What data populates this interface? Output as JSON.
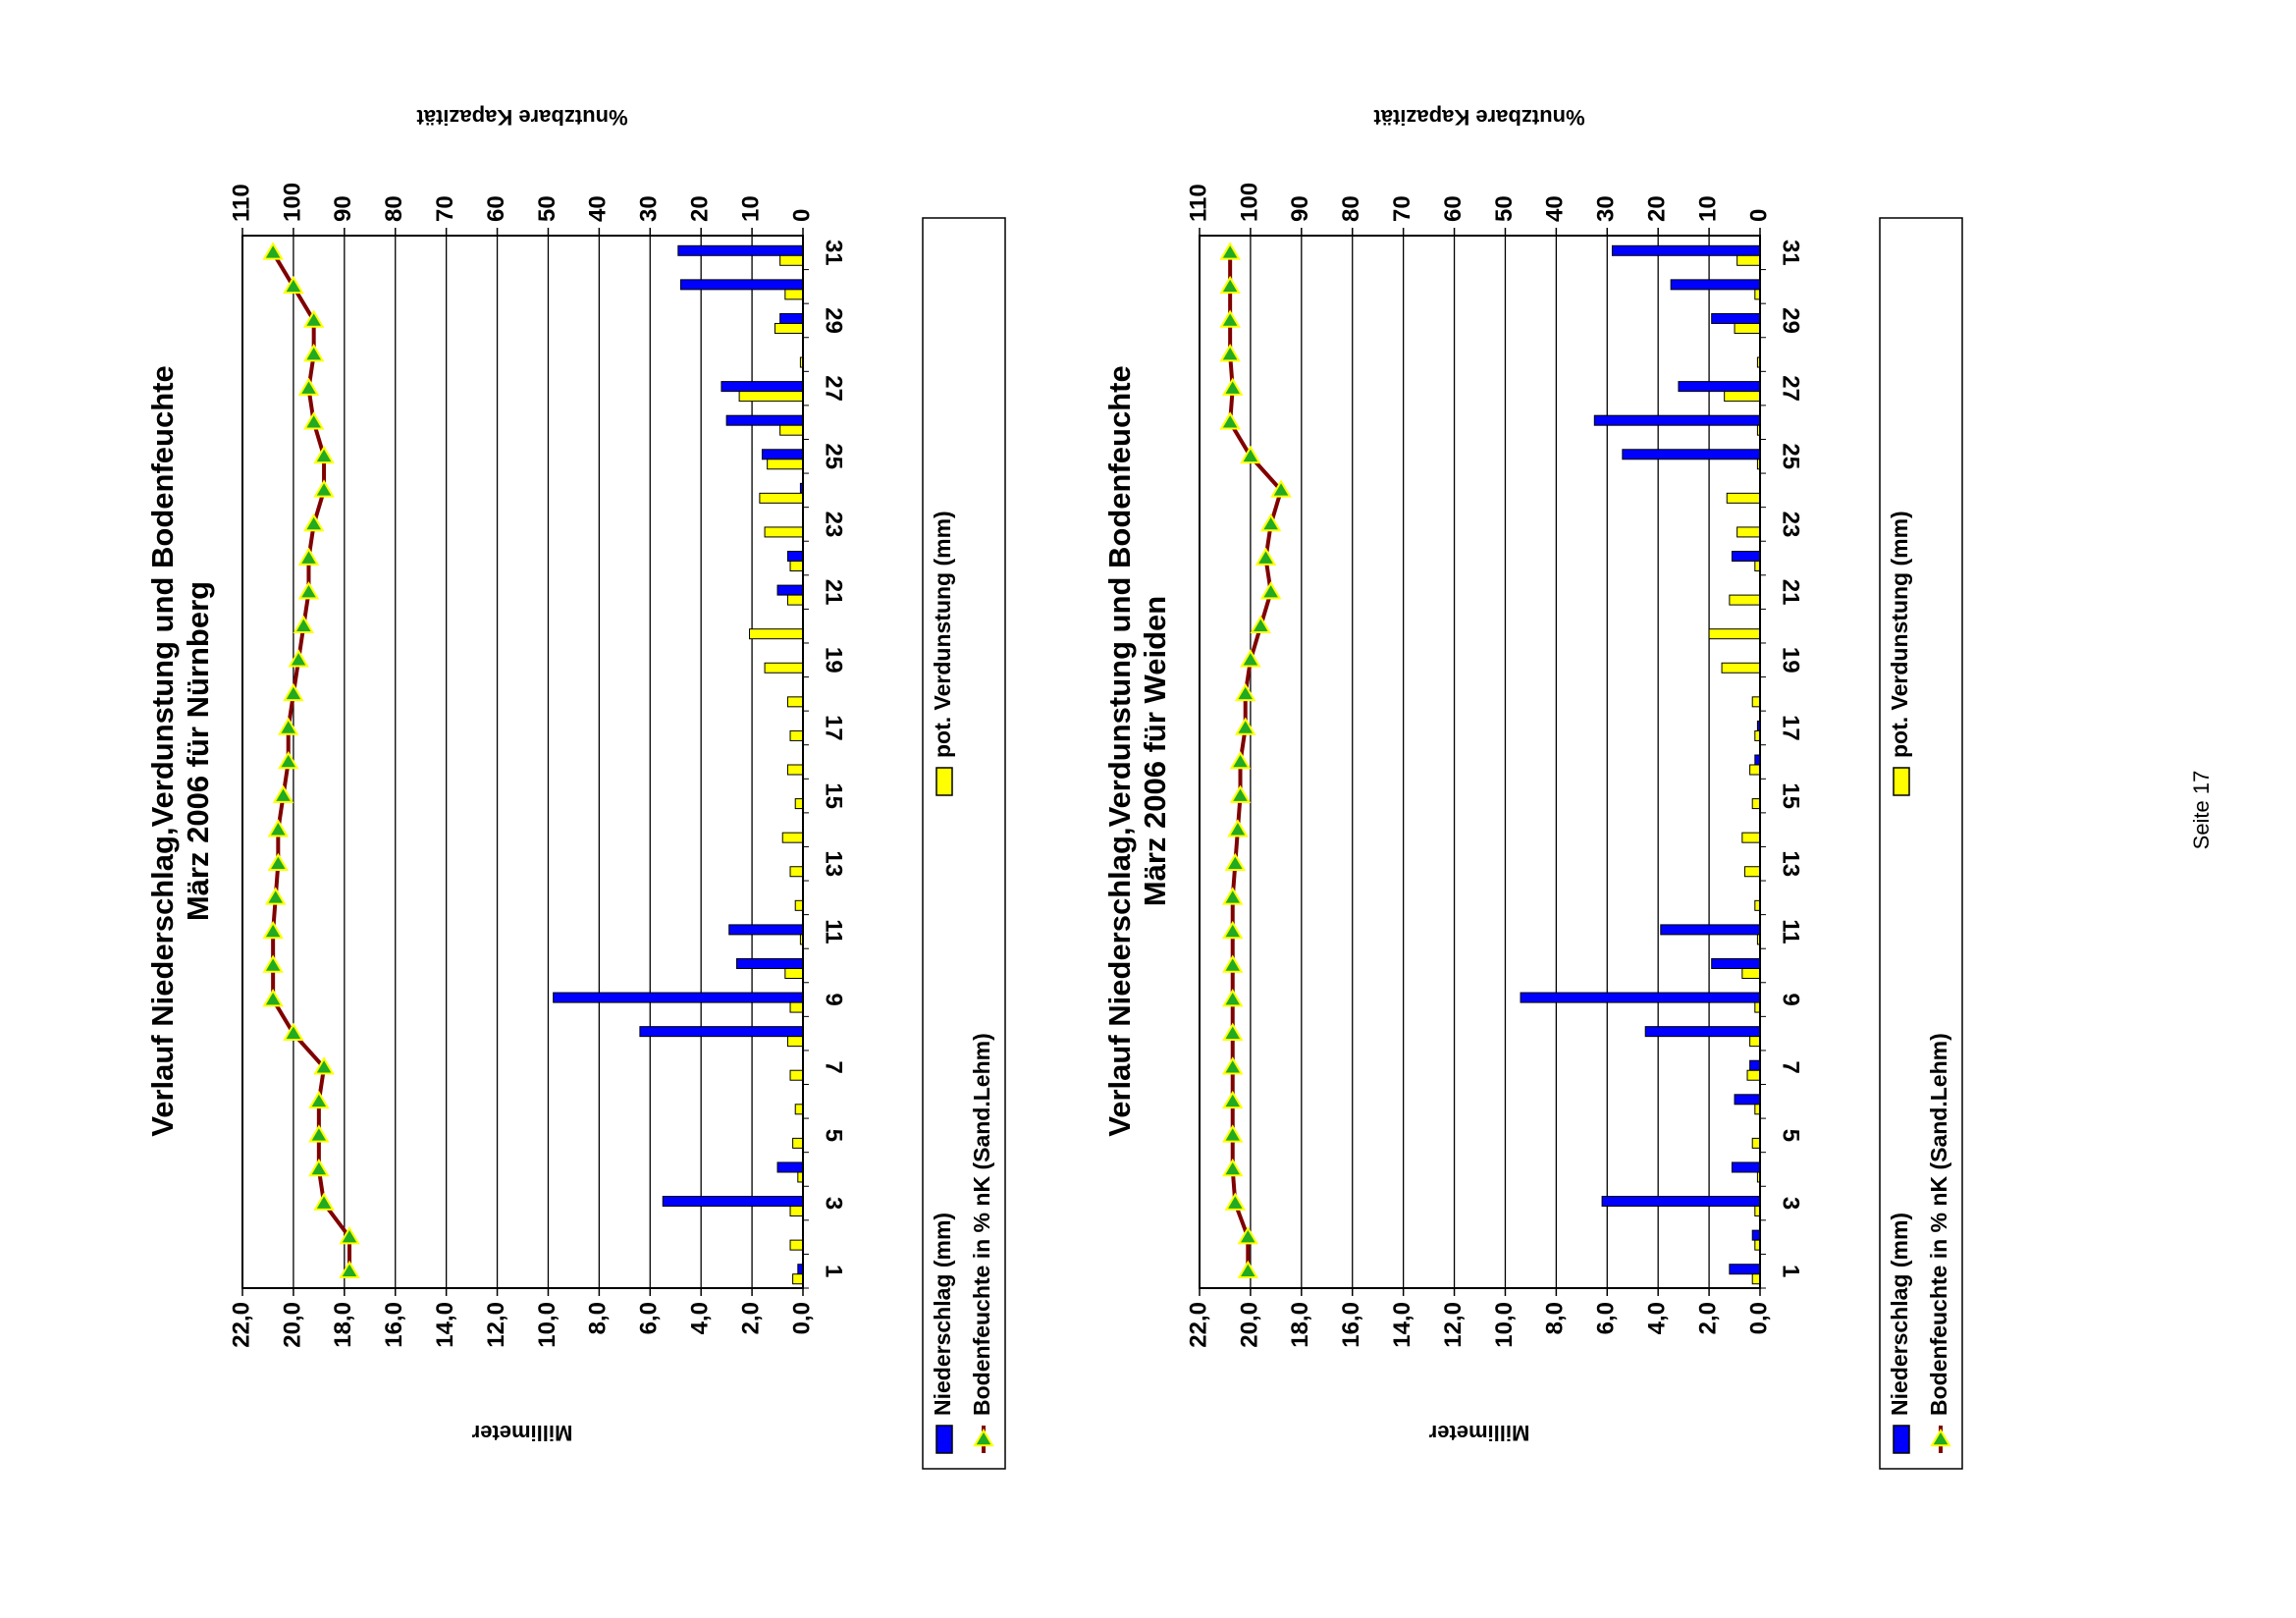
{
  "footer": "Seite 17",
  "chart_data": [
    {
      "type": "bar-line",
      "title": "Verlauf Niederschlag,Verdunstung und Bodenfeuchte",
      "subtitle": "März 2006 für Nürnberg",
      "ylabel": "Millimeter",
      "y2label": "%nutzbare Kapazität",
      "categories": [
        "1",
        null,
        "3",
        null,
        "5",
        null,
        "7",
        null,
        "9",
        null,
        "11",
        null,
        "13",
        null,
        "15",
        null,
        "17",
        null,
        "19",
        null,
        "21",
        null,
        "23",
        null,
        "25",
        null,
        "27",
        null,
        "29",
        null,
        "31"
      ],
      "ylim": [
        0,
        22
      ],
      "yticks": [
        {
          "value": 0,
          "label": "0,0"
        },
        {
          "value": 2,
          "label": "2,0"
        },
        {
          "value": 4,
          "label": "4,0"
        },
        {
          "value": 6,
          "label": "6,0"
        },
        {
          "value": 8,
          "label": "8,0"
        },
        {
          "value": 10,
          "label": "10,0"
        },
        {
          "value": 12,
          "label": "12,0"
        },
        {
          "value": 14,
          "label": "14,0"
        },
        {
          "value": 16,
          "label": "16,0"
        },
        {
          "value": 18,
          "label": "18,0"
        },
        {
          "value": 20,
          "label": "20,0"
        },
        {
          "value": 22,
          "label": "22,0"
        }
      ],
      "y2lim": [
        0,
        110
      ],
      "y2ticks": [
        0,
        10,
        20,
        30,
        40,
        50,
        60,
        70,
        80,
        90,
        100,
        110
      ],
      "grid": true,
      "series": [
        {
          "name": "Niederschlag (mm)",
          "color": "#0000ff",
          "kind": "bar",
          "values": [
            0.2,
            0,
            5.5,
            1.0,
            0,
            0,
            0,
            6.4,
            9.8,
            2.6,
            2.9,
            0,
            0,
            0,
            0,
            0,
            0,
            0,
            0,
            0,
            1.0,
            0.6,
            0,
            0.1,
            1.6,
            3.0,
            3.2,
            0,
            0.9,
            4.8,
            4.9
          ]
        },
        {
          "name": "pot. Verdunstung (mm)",
          "color": "#ffff00",
          "kind": "bar",
          "values": [
            0.4,
            0.5,
            0.5,
            0.2,
            0.4,
            0.3,
            0.5,
            0.6,
            0.5,
            0.7,
            0.1,
            0.3,
            0.5,
            0.8,
            0.3,
            0.6,
            0.5,
            0.6,
            1.5,
            2.1,
            0.6,
            0.5,
            1.5,
            1.7,
            1.4,
            0.9,
            2.5,
            0.1,
            1.1,
            0.7,
            0.9
          ]
        },
        {
          "name": "Bodenfeuchte in % nK (Sand.Lehm)",
          "color": "#800000",
          "marker_color": "#22aa22",
          "kind": "line",
          "axis": "y2",
          "values": [
            89,
            89,
            94,
            95,
            95,
            95,
            94,
            100,
            104,
            104,
            104,
            103.5,
            103,
            103,
            102,
            101,
            101,
            100,
            99,
            98,
            97,
            97,
            96,
            94,
            94,
            96,
            97,
            96,
            96,
            100,
            104
          ]
        }
      ]
    },
    {
      "type": "bar-line",
      "title": "Verlauf Niederschlag,Verdunstung und Bodenfeuchte",
      "subtitle": "März 2006 für Weiden",
      "ylabel": "Millimeter",
      "y2label": "%nutzbare Kapazität",
      "categories": [
        "1",
        null,
        "3",
        null,
        "5",
        null,
        "7",
        null,
        "9",
        null,
        "11",
        null,
        "13",
        null,
        "15",
        null,
        "17",
        null,
        "19",
        null,
        "21",
        null,
        "23",
        null,
        "25",
        null,
        "27",
        null,
        "29",
        null,
        "31"
      ],
      "ylim": [
        0,
        22
      ],
      "yticks": [
        {
          "value": 0,
          "label": "0,0"
        },
        {
          "value": 2,
          "label": "2,0"
        },
        {
          "value": 4,
          "label": "4,0"
        },
        {
          "value": 6,
          "label": "6,0"
        },
        {
          "value": 8,
          "label": "8,0"
        },
        {
          "value": 10,
          "label": "10,0"
        },
        {
          "value": 12,
          "label": "12,0"
        },
        {
          "value": 14,
          "label": "14,0"
        },
        {
          "value": 16,
          "label": "16,0"
        },
        {
          "value": 18,
          "label": "18,0"
        },
        {
          "value": 20,
          "label": "20,0"
        },
        {
          "value": 22,
          "label": "22,0"
        }
      ],
      "y2lim": [
        0,
        110
      ],
      "y2ticks": [
        0,
        10,
        20,
        30,
        40,
        50,
        60,
        70,
        80,
        90,
        100,
        110
      ],
      "grid": true,
      "series": [
        {
          "name": "Niederschlag (mm)",
          "color": "#0000ff",
          "kind": "bar",
          "values": [
            1.2,
            0.3,
            6.2,
            1.1,
            0,
            1.0,
            0.4,
            4.5,
            9.4,
            1.9,
            3.9,
            0,
            0,
            0,
            0,
            0.2,
            0.1,
            0,
            0,
            0,
            0,
            1.1,
            0,
            0,
            5.4,
            6.5,
            3.2,
            0,
            1.9,
            3.5,
            5.8
          ]
        },
        {
          "name": "pot. Verdunstung (mm)",
          "color": "#ffff00",
          "kind": "bar",
          "values": [
            0.3,
            0.2,
            0.2,
            0.1,
            0.3,
            0.2,
            0.5,
            0.4,
            0.2,
            0.7,
            0.1,
            0.2,
            0.6,
            0.7,
            0.3,
            0.4,
            0.2,
            0.3,
            1.5,
            2.0,
            1.2,
            0.2,
            0.9,
            1.3,
            0.1,
            0.1,
            1.4,
            0.1,
            1.0,
            0.2,
            0.9
          ]
        },
        {
          "name": "Bodenfeuchte in % nK (Sand.Lehm)",
          "color": "#800000",
          "marker_color": "#22aa22",
          "kind": "line",
          "axis": "y2",
          "values": [
            100.5,
            100.5,
            103,
            103.5,
            103.5,
            103.5,
            103.5,
            103.5,
            103.5,
            103.5,
            103.5,
            103.5,
            103,
            102.5,
            102,
            102,
            101,
            101,
            100,
            98,
            96,
            97,
            96,
            94,
            100,
            104,
            103.5,
            104,
            104,
            104,
            104
          ]
        }
      ]
    }
  ]
}
